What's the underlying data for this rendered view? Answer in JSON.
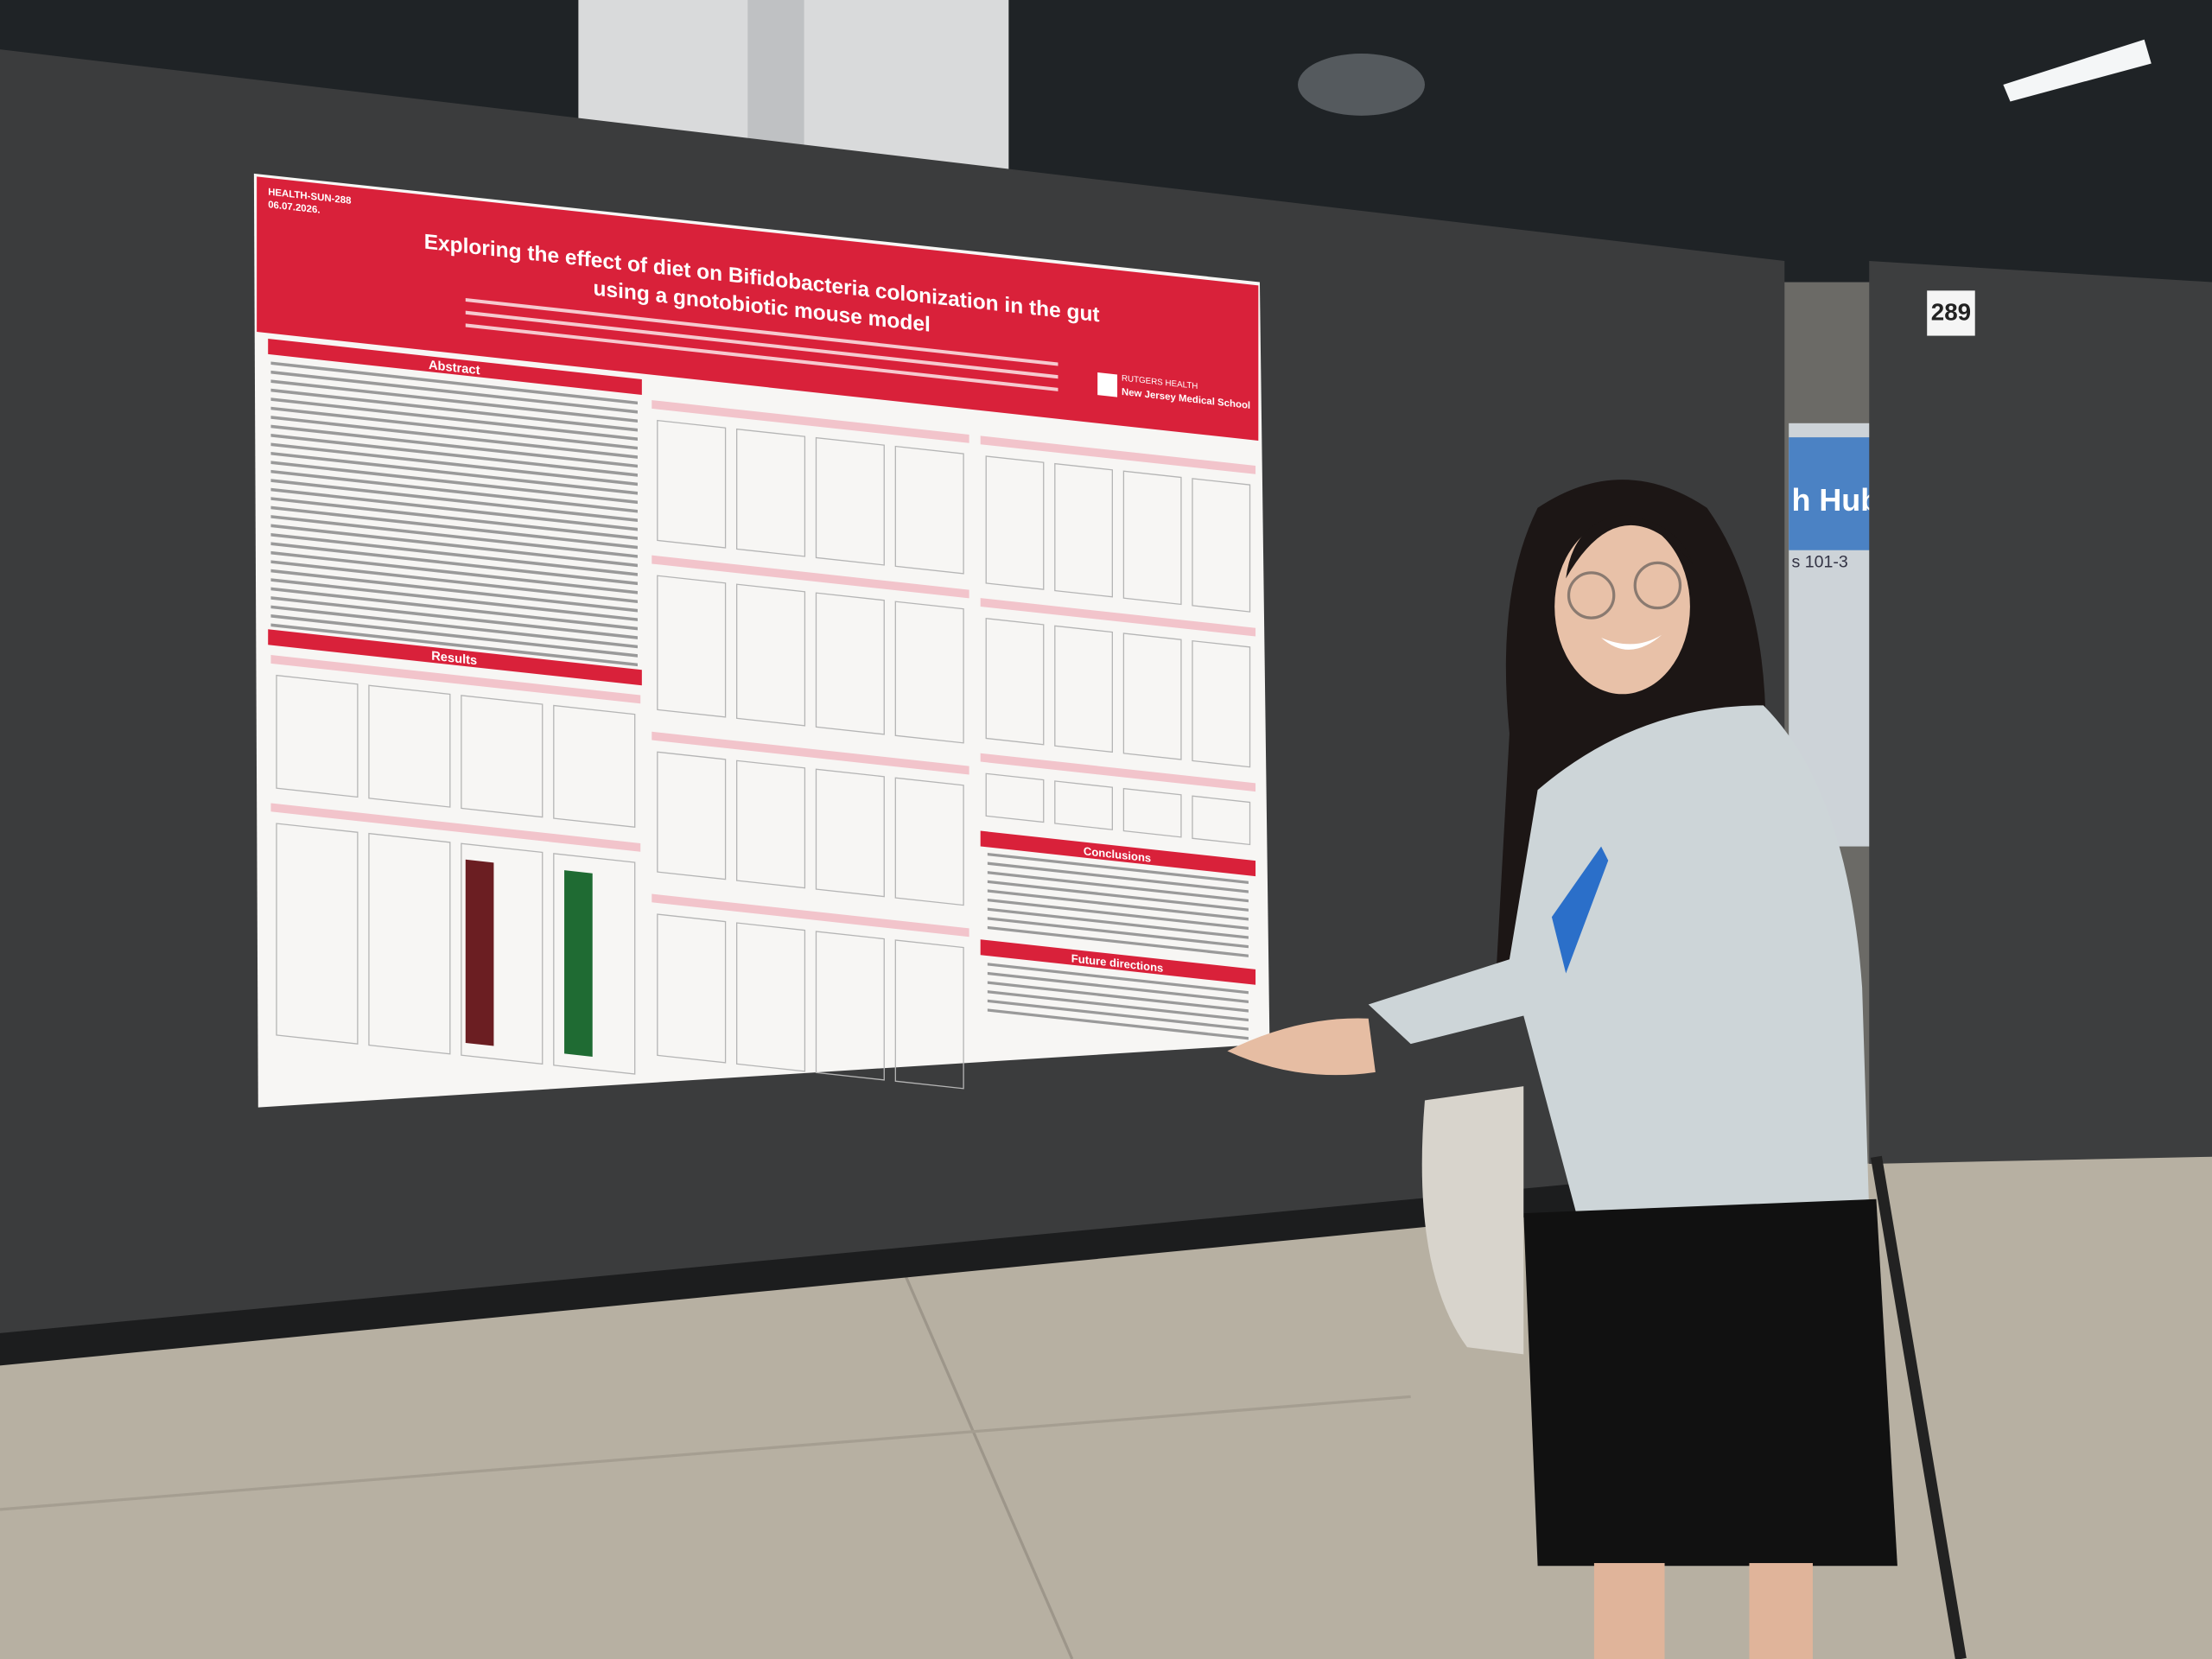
{
  "poster": {
    "code": "HEALTH-SUN-288",
    "date": "06.07.2026.",
    "title_line1": "Exploring the effect of diet on Bifidobacteria colonization in the gut",
    "title_line2": "using a gnotobiotic mouse model",
    "institution": "New Jersey Medical School",
    "brand": "RUTGERS HEALTH",
    "sections": {
      "abstract": "Abstract",
      "results": "Results",
      "conclusions": "Conclusions",
      "future": "Future directions"
    }
  },
  "booth": {
    "number": "289"
  },
  "banner": {
    "text1": "h Hub",
    "text2": "s 101-3"
  }
}
